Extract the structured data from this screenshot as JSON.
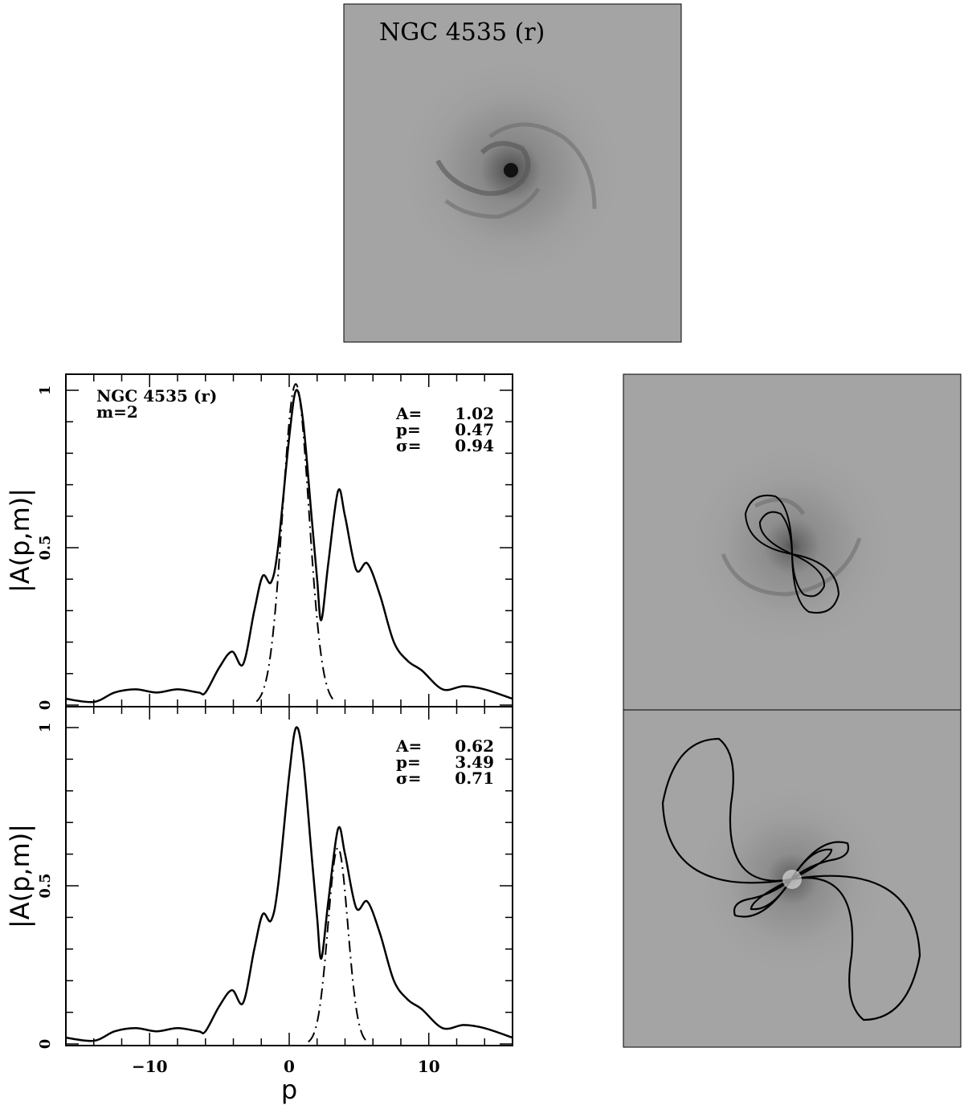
{
  "figure": {
    "galaxy_image_title": "NGC 4535 (r)",
    "image_background": "#a4a4a4"
  },
  "chart_data": [
    {
      "type": "line",
      "panel": "top",
      "annotation": [
        "NGC 4535 (r)",
        "m=2"
      ],
      "fit_labels": {
        "A": "A=",
        "p": "p=",
        "sigma": "σ="
      },
      "fit": {
        "A": "1.02",
        "p": "0.47",
        "sigma": "0.94"
      },
      "ylabel": "|A(p,m)|",
      "xlim": [
        -16,
        16
      ],
      "ylim": [
        0,
        1.05
      ],
      "yticklabels": [
        "0",
        "0.5",
        "1"
      ],
      "series": [
        {
          "style": "solid",
          "x": [
            -16,
            -14,
            -12.5,
            -11,
            -9.5,
            -8,
            -6.5,
            -6,
            -5,
            -4.1,
            -3.3,
            -2.5,
            -1.9,
            -1.3,
            -0.8,
            0,
            0.5,
            1,
            1.6,
            2,
            2.3,
            2.8,
            3.5,
            4,
            4.8,
            5.6,
            6.5,
            7.5,
            8.5,
            9.5,
            11,
            12.5,
            14,
            16
          ],
          "y": [
            0.02,
            0.01,
            0.04,
            0.05,
            0.04,
            0.05,
            0.04,
            0.04,
            0.12,
            0.17,
            0.13,
            0.3,
            0.41,
            0.39,
            0.5,
            0.85,
            1.0,
            0.9,
            0.6,
            0.4,
            0.27,
            0.45,
            0.68,
            0.6,
            0.43,
            0.45,
            0.35,
            0.2,
            0.14,
            0.11,
            0.05,
            0.06,
            0.05,
            0.02
          ]
        },
        {
          "style": "dash-dot",
          "model": "gaussian"
        }
      ]
    },
    {
      "type": "line",
      "panel": "bottom",
      "fit_labels": {
        "A": "A=",
        "p": "p=",
        "sigma": "σ="
      },
      "fit": {
        "A": "0.62",
        "p": "3.49",
        "sigma": "0.71"
      },
      "xlabel": "p",
      "ylabel": "|A(p,m)|",
      "xlim": [
        -16,
        16
      ],
      "ylim": [
        0,
        1.05
      ],
      "xticklabels": [
        "−10",
        "0",
        "10"
      ],
      "yticklabels": [
        "0",
        "0.5",
        "1"
      ],
      "series": [
        {
          "style": "solid",
          "same_as": "top"
        },
        {
          "style": "dash-dot",
          "model": "gaussian"
        }
      ]
    }
  ]
}
